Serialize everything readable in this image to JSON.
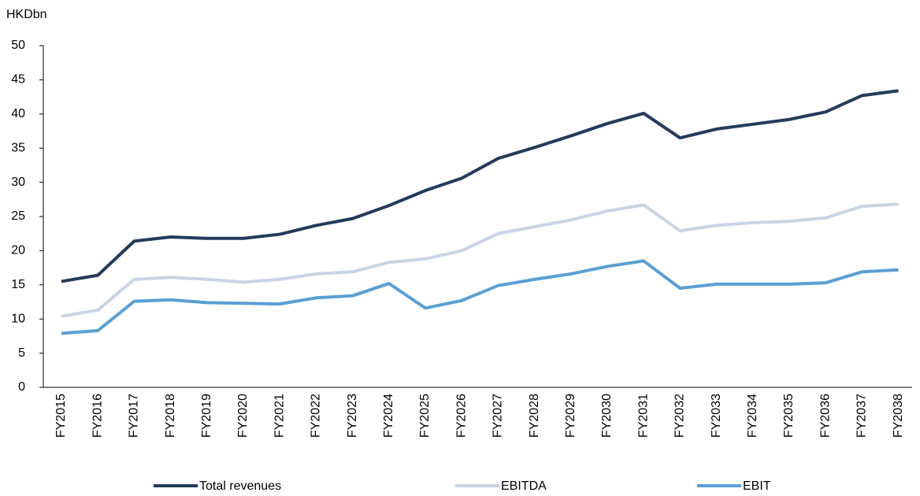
{
  "chart_data": {
    "type": "line",
    "y_label": "HKDbn",
    "categories": [
      "FY2015",
      "FY2016",
      "FY2017",
      "FY2018",
      "FY2019",
      "FY2020",
      "FY2021",
      "FY2022",
      "FY2023",
      "FY2024",
      "FY2025",
      "FY2026",
      "FY2027",
      "FY2028",
      "FY2029",
      "FY2030",
      "FY2031",
      "FY2032",
      "FY2033",
      "FY2034",
      "FY2035",
      "FY2036",
      "FY2037",
      "FY2038"
    ],
    "series": [
      {
        "name": "Total revenues",
        "color": "#243a5e",
        "values": [
          15.5,
          16.4,
          21.4,
          22.0,
          21.8,
          21.8,
          22.4,
          23.7,
          24.7,
          26.6,
          28.8,
          30.6,
          33.5,
          35.1,
          36.8,
          38.6,
          40.1,
          36.5,
          37.8,
          38.5,
          39.2,
          40.3,
          42.7,
          43.4
        ]
      },
      {
        "name": "EBITDA",
        "color": "#c9d4e5",
        "values": [
          10.4,
          11.3,
          15.8,
          16.1,
          15.8,
          15.4,
          15.8,
          16.6,
          16.9,
          18.3,
          18.8,
          20.0,
          22.5,
          23.5,
          24.5,
          25.8,
          26.7,
          22.9,
          23.7,
          24.1,
          24.3,
          24.8,
          26.5,
          26.8
        ]
      },
      {
        "name": "EBIT",
        "color": "#5a9fd4",
        "values": [
          7.9,
          8.3,
          12.6,
          12.8,
          12.4,
          12.3,
          12.2,
          13.1,
          13.4,
          15.2,
          11.6,
          12.7,
          14.9,
          15.8,
          16.6,
          17.7,
          18.5,
          14.5,
          15.1,
          15.1,
          15.1,
          15.3,
          16.9,
          17.2
        ]
      }
    ],
    "ylim": [
      0,
      50
    ],
    "yticks": [
      0,
      5,
      10,
      15,
      20,
      25,
      30,
      35,
      40,
      45,
      50
    ],
    "grid": false
  }
}
